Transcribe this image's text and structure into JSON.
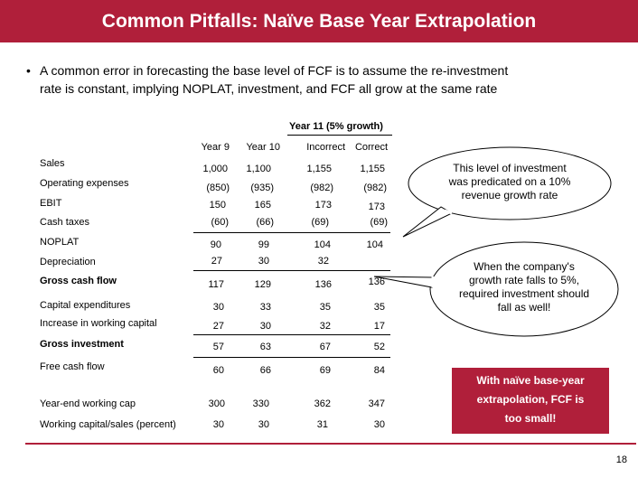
{
  "title": "Common Pitfalls: Naïve Base Year Extrapolation",
  "bullet": {
    "marker": "•",
    "line1": "A common error in forecasting the base level of FCF is to assume the re-investment",
    "line2": "rate is constant, implying NOPLAT, investment, and FCF all grow at the same rate"
  },
  "table": {
    "group_header": "Year 11 (5% growth)",
    "columns": [
      "Year 9",
      "Year 10",
      "Incorrect",
      "Correct"
    ],
    "rows": [
      {
        "label": "Sales",
        "values": [
          "1,000",
          "1,100",
          "1,155",
          "1,155"
        ]
      },
      {
        "label": "Operating expenses",
        "values": [
          "(850)",
          "(935)",
          "(982)",
          "(982)"
        ]
      },
      {
        "label": "EBIT",
        "values": [
          "150",
          "165",
          "173",
          "173"
        ]
      },
      {
        "label": "Cash taxes",
        "values": [
          "(60)",
          "(66)",
          "(69)",
          "(69)"
        ]
      },
      {
        "label": "NOPLAT",
        "values": [
          "90",
          "99",
          "104",
          "104"
        ]
      },
      {
        "label": "Depreciation",
        "values": [
          "27",
          "30",
          "32",
          ""
        ]
      },
      {
        "label": "Gross cash flow",
        "values": [
          "117",
          "129",
          "136",
          "136"
        ]
      },
      {
        "label": "Capital expenditures",
        "values": [
          "30",
          "33",
          "35",
          "35"
        ]
      },
      {
        "label": "Increase in working capital",
        "values": [
          "27",
          "30",
          "32",
          "17"
        ]
      },
      {
        "label": "Gross investment",
        "values": [
          "57",
          "63",
          "67",
          "52"
        ]
      },
      {
        "label": "Free cash flow",
        "values": [
          "60",
          "66",
          "69",
          "84"
        ]
      },
      {
        "label": "Year-end working cap",
        "values": [
          "300",
          "330",
          "362",
          "347"
        ]
      },
      {
        "label": "Working capital/sales (percent)",
        "values": [
          "30",
          "30",
          "31",
          "30"
        ]
      }
    ]
  },
  "callouts": {
    "investment_note": [
      "This level of investment",
      "was predicated on a 10%",
      "revenue growth rate"
    ],
    "growth_note": [
      "When the company's",
      "growth rate falls to 5%,",
      "required investment should",
      "fall as well!"
    ],
    "conclusion": [
      "With naïve base-year",
      "extrapolation, FCF is",
      "too small!"
    ]
  },
  "page_number": "18",
  "colors": {
    "accent": "#b01f3a",
    "text": "#000000",
    "background": "#ffffff"
  }
}
